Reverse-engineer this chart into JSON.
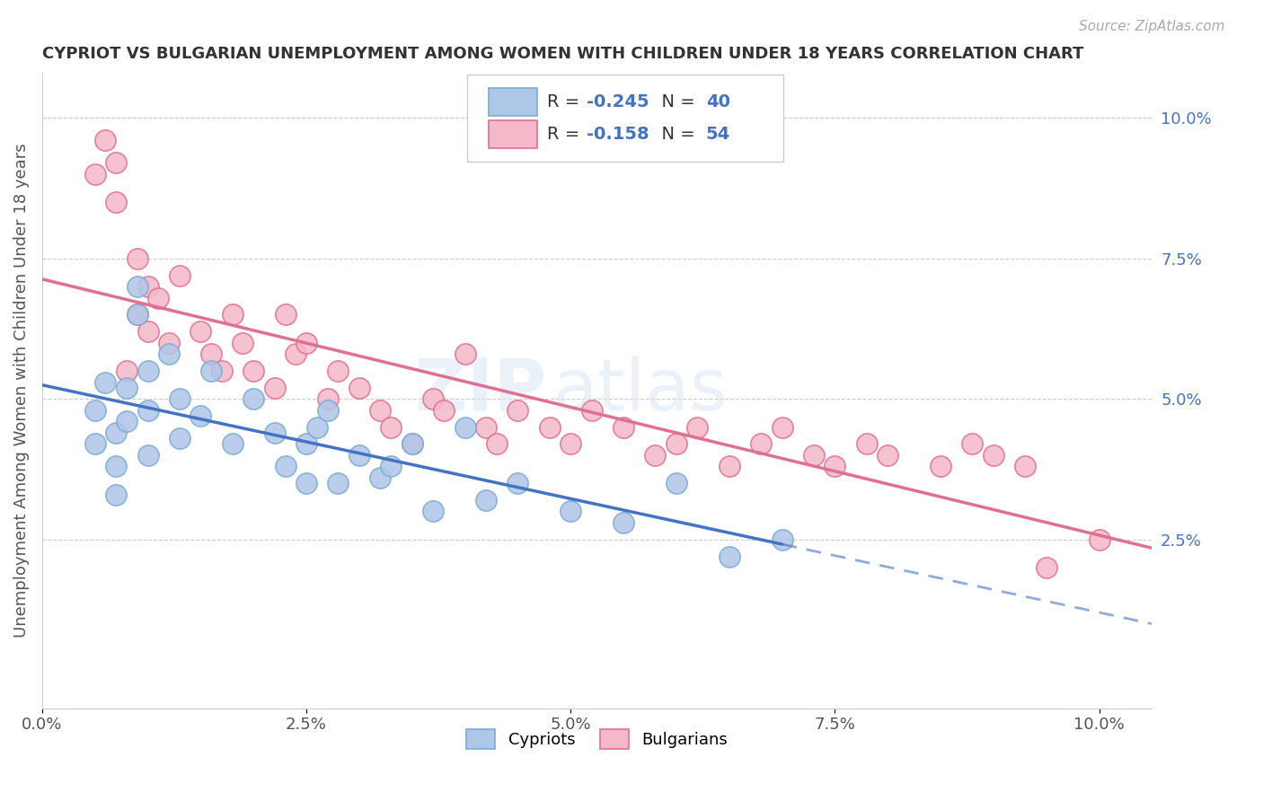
{
  "title": "CYPRIOT VS BULGARIAN UNEMPLOYMENT AMONG WOMEN WITH CHILDREN UNDER 18 YEARS CORRELATION CHART",
  "source": "Source: ZipAtlas.com",
  "ylabel": "Unemployment Among Women with Children Under 18 years",
  "x_ticks": [
    0.0,
    0.025,
    0.05,
    0.075,
    0.1
  ],
  "x_tick_labels": [
    "0.0%",
    "2.5%",
    "5.0%",
    "7.5%",
    "10.0%"
  ],
  "y_ticks_right": [
    0.025,
    0.05,
    0.075,
    0.1
  ],
  "y_tick_labels_right": [
    "2.5%",
    "5.0%",
    "7.5%",
    "10.0%"
  ],
  "xlim": [
    0.0,
    0.105
  ],
  "ylim": [
    -0.005,
    0.108
  ],
  "cypriot_color": "#aec6e8",
  "bulgarian_color": "#f4b8c8",
  "cypriot_edge": "#7bacd4",
  "bulgarian_edge": "#e07090",
  "cypriot_line_color": "#4472c4",
  "bulgarian_line_color": "#e07090",
  "R_cypriot": -0.245,
  "N_cypriot": 40,
  "R_bulgarian": -0.158,
  "N_bulgarian": 54,
  "legend_label_cypriot": "Cypriots",
  "legend_label_bulgarian": "Bulgarians",
  "watermark_zip": "ZIP",
  "watermark_atlas": "atlas",
  "cypriot_x": [
    0.005,
    0.005,
    0.006,
    0.007,
    0.007,
    0.007,
    0.008,
    0.008,
    0.009,
    0.009,
    0.01,
    0.01,
    0.01,
    0.012,
    0.013,
    0.013,
    0.015,
    0.016,
    0.018,
    0.02,
    0.022,
    0.023,
    0.025,
    0.025,
    0.026,
    0.027,
    0.028,
    0.03,
    0.032,
    0.033,
    0.035,
    0.037,
    0.04,
    0.042,
    0.045,
    0.05,
    0.055,
    0.06,
    0.065,
    0.07
  ],
  "cypriot_y": [
    0.048,
    0.042,
    0.053,
    0.038,
    0.044,
    0.033,
    0.052,
    0.046,
    0.065,
    0.07,
    0.055,
    0.04,
    0.048,
    0.058,
    0.05,
    0.043,
    0.047,
    0.055,
    0.042,
    0.05,
    0.044,
    0.038,
    0.042,
    0.035,
    0.045,
    0.048,
    0.035,
    0.04,
    0.036,
    0.038,
    0.042,
    0.03,
    0.045,
    0.032,
    0.035,
    0.03,
    0.028,
    0.035,
    0.022,
    0.025
  ],
  "bulgarian_x": [
    0.005,
    0.006,
    0.007,
    0.007,
    0.008,
    0.009,
    0.009,
    0.01,
    0.01,
    0.011,
    0.012,
    0.013,
    0.015,
    0.016,
    0.017,
    0.018,
    0.019,
    0.02,
    0.022,
    0.023,
    0.024,
    0.025,
    0.027,
    0.028,
    0.03,
    0.032,
    0.033,
    0.035,
    0.037,
    0.038,
    0.04,
    0.042,
    0.043,
    0.045,
    0.048,
    0.05,
    0.052,
    0.055,
    0.058,
    0.06,
    0.062,
    0.065,
    0.068,
    0.07,
    0.073,
    0.075,
    0.078,
    0.08,
    0.085,
    0.088,
    0.09,
    0.093,
    0.095,
    0.1
  ],
  "bulgarian_y": [
    0.09,
    0.096,
    0.085,
    0.092,
    0.055,
    0.075,
    0.065,
    0.07,
    0.062,
    0.068,
    0.06,
    0.072,
    0.062,
    0.058,
    0.055,
    0.065,
    0.06,
    0.055,
    0.052,
    0.065,
    0.058,
    0.06,
    0.05,
    0.055,
    0.052,
    0.048,
    0.045,
    0.042,
    0.05,
    0.048,
    0.058,
    0.045,
    0.042,
    0.048,
    0.045,
    0.042,
    0.048,
    0.045,
    0.04,
    0.042,
    0.045,
    0.038,
    0.042,
    0.045,
    0.04,
    0.038,
    0.042,
    0.04,
    0.038,
    0.042,
    0.04,
    0.038,
    0.02,
    0.025
  ]
}
